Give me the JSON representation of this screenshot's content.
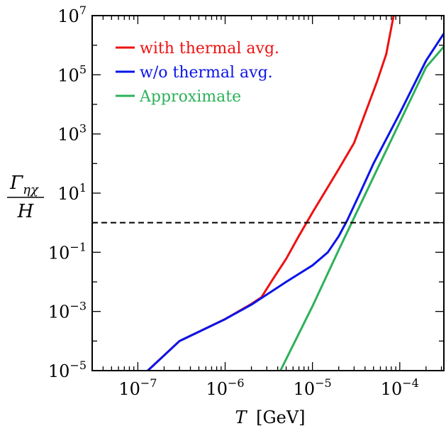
{
  "chart_data": {
    "type": "line",
    "xlabel": {
      "var": "T",
      "units": "[GeV]"
    },
    "ylabel": {
      "numerator": "Γ",
      "subscript": "ηχ",
      "denominator": "H"
    },
    "x_scale": "log",
    "y_scale": "log",
    "xlim": [
      3e-08,
      0.00032
    ],
    "ylim": [
      1e-05,
      10000000.0
    ],
    "x_ticks": [
      {
        "base": "10",
        "exp": "−7",
        "value": 1e-07
      },
      {
        "base": "10",
        "exp": "−6",
        "value": 1e-06
      },
      {
        "base": "10",
        "exp": "−5",
        "value": 1e-05
      },
      {
        "base": "10",
        "exp": "−4",
        "value": 0.0001
      }
    ],
    "y_ticks": [
      {
        "base": "10",
        "exp": "−5",
        "value": 1e-05
      },
      {
        "base": "10",
        "exp": "−3",
        "value": 0.001
      },
      {
        "base": "10",
        "exp": "−1",
        "value": 0.1
      },
      {
        "base": "10",
        "exp": "1",
        "value": 10.0
      },
      {
        "base": "10",
        "exp": "3",
        "value": 1000.0
      },
      {
        "base": "10",
        "exp": "5",
        "value": 100000.0
      },
      {
        "base": "10",
        "exp": "7",
        "value": 10000000.0
      }
    ],
    "grid": false,
    "legend_position": "top-left",
    "reference_line": {
      "y": 1,
      "style": "dashed",
      "color": "#000000"
    },
    "series": [
      {
        "name": "with thermal avg.",
        "color": "#ee1111",
        "points": [
          [
            1.3e-07,
            1e-05
          ],
          [
            3e-07,
            0.0001
          ],
          [
            1e-06,
            0.00055
          ],
          [
            2e-06,
            0.0018
          ],
          [
            2.6e-06,
            0.003
          ],
          [
            3.5e-06,
            0.012
          ],
          [
            5e-06,
            0.06
          ],
          [
            7e-06,
            0.36
          ],
          [
            1e-05,
            2.2
          ],
          [
            2e-05,
            65.0
          ],
          [
            3e-05,
            500.0
          ],
          [
            5.5e-05,
            60000.0
          ],
          [
            7e-05,
            500000.0
          ],
          [
            8.5e-05,
            10000000.0
          ]
        ]
      },
      {
        "name": "w/o thermal avg.",
        "color": "#0a14e8",
        "points": [
          [
            1.3e-07,
            1e-05
          ],
          [
            3e-07,
            0.0001
          ],
          [
            1e-06,
            0.00055
          ],
          [
            2e-06,
            0.0017
          ],
          [
            5e-06,
            0.01
          ],
          [
            1e-05,
            0.036
          ],
          [
            1.5e-05,
            0.1
          ],
          [
            2e-05,
            0.35
          ],
          [
            2.5e-05,
            1.2
          ],
          [
            3.5e-05,
            10.0
          ],
          [
            5e-05,
            100.0
          ],
          [
            0.0001,
            5000.0
          ],
          [
            0.0002,
            300000.0
          ],
          [
            0.00032,
            2500000.0
          ]
        ]
      },
      {
        "name": "Approximate",
        "color": "#2db15a",
        "points": [
          [
            4.3e-06,
            1e-05
          ],
          [
            1e-05,
            0.0015
          ],
          [
            2e-05,
            0.12
          ],
          [
            5e-05,
            35.0
          ],
          [
            0.0001,
            2500.0
          ],
          [
            0.0002,
            180000.0
          ],
          [
            0.00032,
            900000.0
          ]
        ]
      }
    ]
  }
}
